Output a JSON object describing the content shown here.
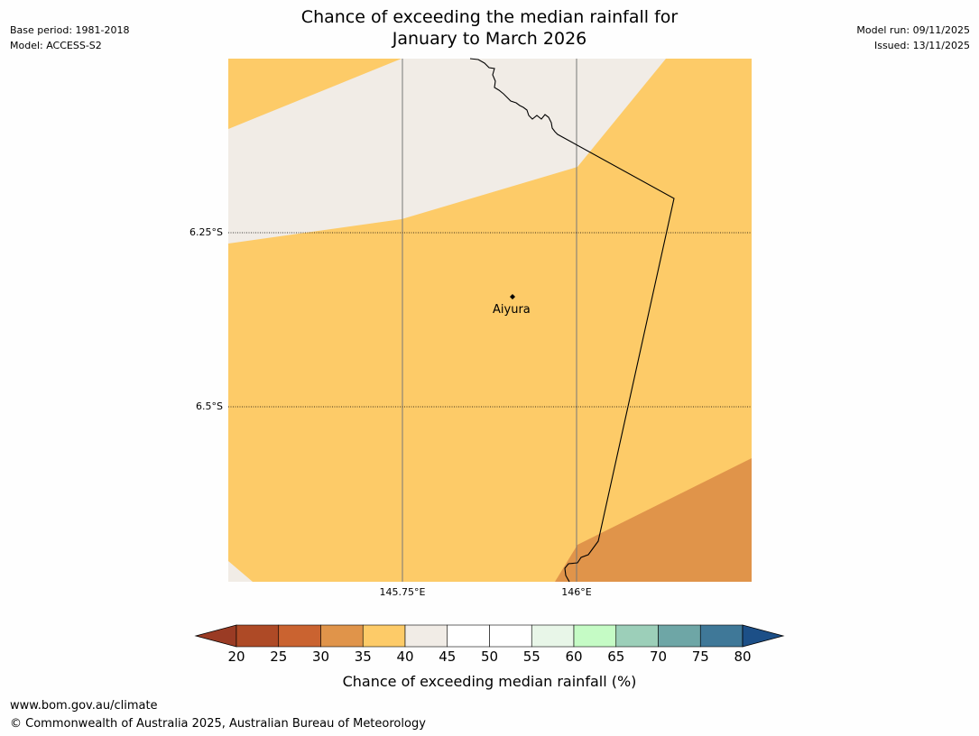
{
  "meta_left": {
    "base_period": "Base period: 1981-2018",
    "model": "Model: ACCESS-S2"
  },
  "meta_right": {
    "model_run": "Model run: 09/11/2025",
    "issued": "Issued: 13/11/2025"
  },
  "title": {
    "line1": "Chance of exceeding the median rainfall for",
    "line2": "January to March 2026"
  },
  "map": {
    "lat_labels": [
      "6.25°S",
      "6.5°S"
    ],
    "lon_labels": [
      "145.75°E",
      "146°E"
    ],
    "place": {
      "name": "Aiyura"
    },
    "colors": {
      "category_35_40": "#fdcb68",
      "category_40_45": "#f1ece6",
      "category_30_35": "#e0944a"
    }
  },
  "colorbar": {
    "ticks": [
      "20",
      "25",
      "30",
      "35",
      "40",
      "45",
      "50",
      "55",
      "60",
      "65",
      "70",
      "75",
      "80"
    ],
    "colors": [
      "#9a3b24",
      "#ae4a26",
      "#ca6330",
      "#e0944a",
      "#fdcb68",
      "#f1ece6",
      "#ffffff",
      "#ffffff",
      "#e8f6e8",
      "#c5fbc5",
      "#9ccfb9",
      "#6ea6a6",
      "#3f7898",
      "#1c4f87"
    ],
    "label": "Chance of exceeding median rainfall (%)"
  },
  "footer": {
    "url": "www.bom.gov.au/climate",
    "copyright": "© Commonwealth of Australia 2025, Australian Bureau of Meteorology"
  }
}
